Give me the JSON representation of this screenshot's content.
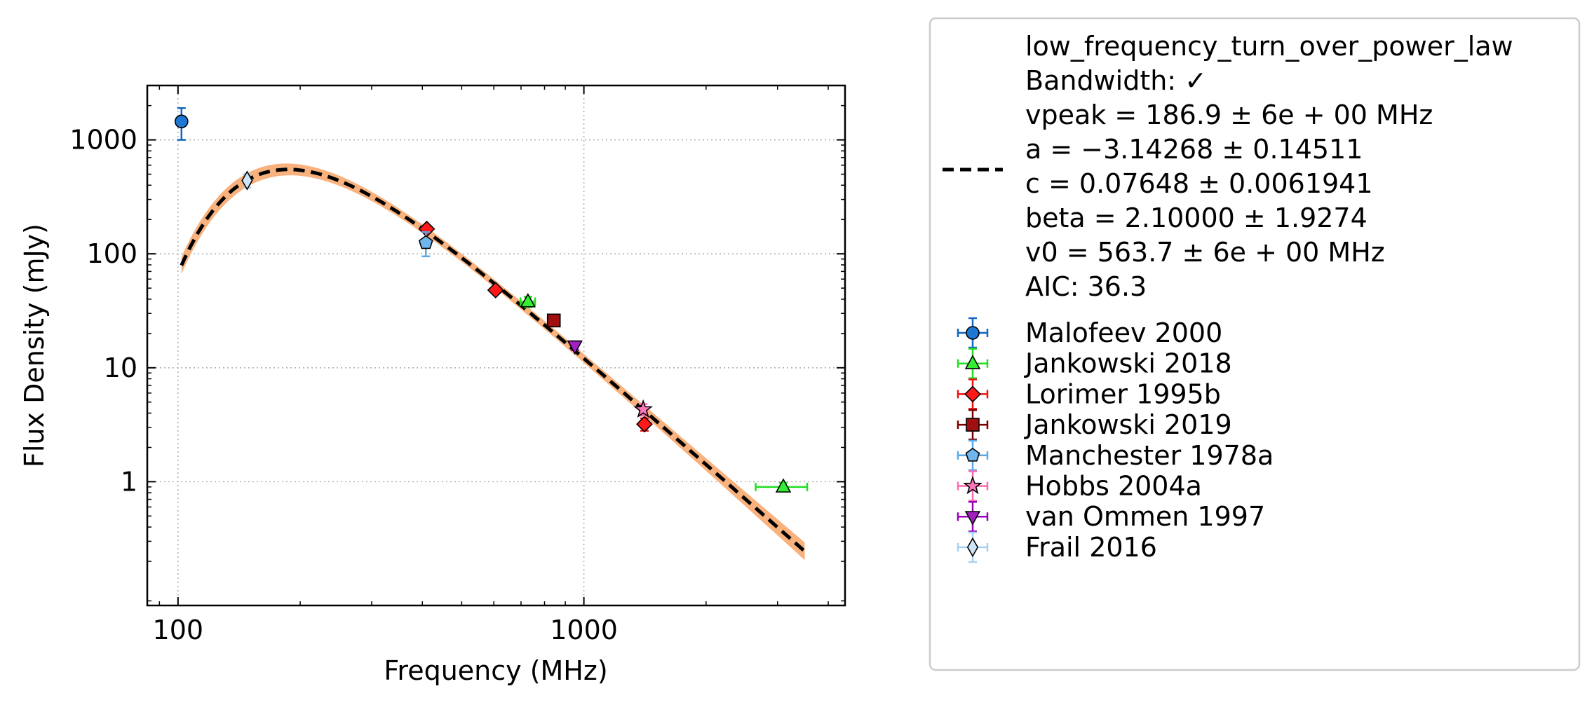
{
  "chart_data": {
    "type": "scatter",
    "xlabel": "Frequency (MHz)",
    "ylabel": "Flux Density (mJy)",
    "x_scale": "log",
    "y_scale": "log",
    "xlim": [
      84,
      4400
    ],
    "ylim": [
      0.082,
      3000
    ],
    "x_ticks": [
      {
        "value": 100,
        "label": "100"
      },
      {
        "value": 1000,
        "label": "1000"
      }
    ],
    "y_ticks": [
      {
        "value": 1,
        "label": "1"
      },
      {
        "value": 10,
        "label": "10"
      },
      {
        "value": 100,
        "label": "100"
      },
      {
        "value": 1000,
        "label": "1000"
      }
    ],
    "grid": true,
    "legend_position": "outside right",
    "fit": {
      "name": "low_frequency_turn_over_power_law",
      "lines": [
        "low_frequency_turn_over_power_law",
        "Bandwidth: ✓",
        "vpeak = 186.9 ± 6e + 00 MHz",
        "a = −3.14268 ± 0.14511",
        "c = 0.07648 ± 0.0061941",
        "beta = 2.10000 ± 1.9274",
        "v0 = 563.7 ± 6e + 00 MHz",
        "AIC: 36.3"
      ],
      "x_range": [
        102,
        3500
      ],
      "params": {
        "vpeak": 186.9,
        "a": -3.14268,
        "c": 0.07648,
        "beta": 2.1,
        "v0": 563.7
      },
      "line_color": "#000000",
      "band_color": "#f9b27d"
    },
    "series": [
      {
        "name": "Malofeev 2000",
        "marker": "circle",
        "color": "#1565c0",
        "face": "#1f77d4",
        "points": [
          {
            "x": 102,
            "y": 1450,
            "yerr": [
              450,
              450
            ],
            "xerr": [
              0,
              0
            ]
          }
        ]
      },
      {
        "name": "Jankowski 2018",
        "marker": "triangle-up",
        "color": "#22dd22",
        "face": "#33ee33",
        "points": [
          {
            "x": 728,
            "y": 38,
            "yerr": [
              4,
              4
            ],
            "xerr": [
              30,
              30
            ]
          },
          {
            "x": 3100,
            "y": 0.9,
            "yerr": [
              0.08,
              0.08
            ],
            "xerr": [
              450,
              450
            ]
          }
        ]
      },
      {
        "name": "Lorimer 1995b",
        "marker": "diamond",
        "color": "#ee1111",
        "face": "#ff1a1a",
        "points": [
          {
            "x": 410,
            "y": 165,
            "yerr": [
              8,
              8
            ],
            "xerr": [
              0,
              0
            ]
          },
          {
            "x": 606,
            "y": 48,
            "yerr": [
              3,
              3
            ],
            "xerr": [
              0,
              0
            ]
          },
          {
            "x": 1410,
            "y": 3.2,
            "yerr": [
              0.4,
              0.4
            ],
            "xerr": [
              0,
              0
            ]
          }
        ]
      },
      {
        "name": "Jankowski 2019",
        "marker": "square",
        "color": "#7a0000",
        "face": "#a01010",
        "points": [
          {
            "x": 843,
            "y": 26,
            "yerr": [
              2,
              2
            ],
            "xerr": [
              0,
              0
            ]
          }
        ]
      },
      {
        "name": "Manchester 1978a",
        "marker": "pentagon",
        "color": "#5aa9e6",
        "face": "#6fb5ee",
        "points": [
          {
            "x": 408,
            "y": 125,
            "yerr": [
              30,
              30
            ],
            "xerr": [
              0,
              0
            ]
          }
        ]
      },
      {
        "name": "Hobbs 2004a",
        "marker": "star",
        "color": "#ff69b4",
        "face": "#ff77bb",
        "points": [
          {
            "x": 1400,
            "y": 4.3,
            "yerr": [
              0.5,
              0.5
            ],
            "xerr": [
              0,
              0
            ]
          }
        ]
      },
      {
        "name": "van Ommen 1997",
        "marker": "triangle-down",
        "color": "#9900bb",
        "face": "#a020c0",
        "points": [
          {
            "x": 950,
            "y": 15.5,
            "yerr": [
              1.2,
              1.2
            ],
            "xerr": [
              0,
              0
            ]
          }
        ]
      },
      {
        "name": "Frail 2016",
        "marker": "thin-diamond",
        "color": "#a8d0f0",
        "face": "#cfe5f7",
        "points": [
          {
            "x": 148,
            "y": 440,
            "yerr": [
              60,
              60
            ],
            "xerr": [
              0,
              0
            ]
          }
        ]
      }
    ]
  }
}
